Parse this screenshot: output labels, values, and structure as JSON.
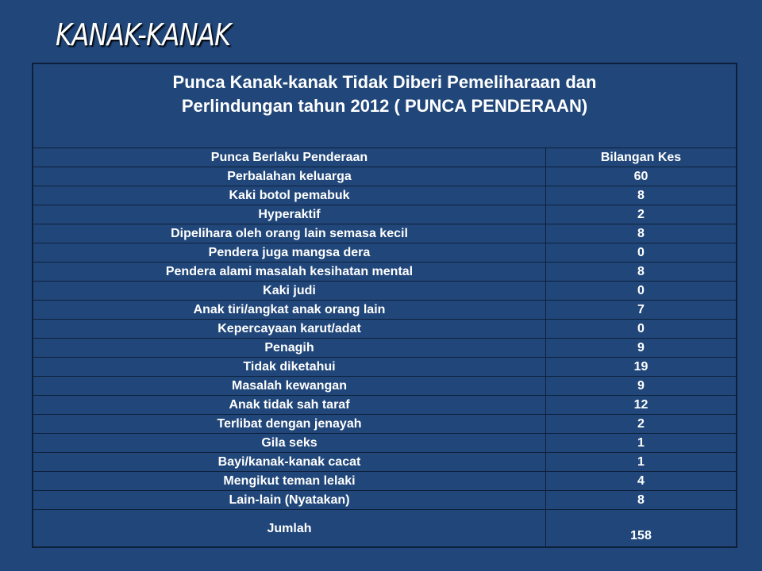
{
  "slide": {
    "title": "KANAK-KANAK"
  },
  "table": {
    "caption_line1": "Punca Kanak-kanak Tidak Diberi Pemeliharaan dan",
    "caption_line2": "Perlindungan tahun 2012 ( PUNCA PENDERAAN)",
    "headers": [
      "Punca Berlaku Penderaan",
      "Bilangan Kes"
    ],
    "rows": [
      [
        "Perbalahan keluarga",
        "60"
      ],
      [
        "Kaki botol pemabuk",
        "8"
      ],
      [
        "Hyperaktif",
        "2"
      ],
      [
        "Dipelihara oleh orang lain semasa kecil",
        "8"
      ],
      [
        "Pendera juga mangsa dera",
        "0"
      ],
      [
        "Pendera alami masalah kesihatan mental",
        "8"
      ],
      [
        "Kaki judi",
        "0"
      ],
      [
        "Anak tiri/angkat anak orang lain",
        "7"
      ],
      [
        "Kepercayaan karut/adat",
        "0"
      ],
      [
        "Penagih",
        "9"
      ],
      [
        "Tidak diketahui",
        "19"
      ],
      [
        "Masalah kewangan",
        "9"
      ],
      [
        "Anak tidak sah taraf",
        "12"
      ],
      [
        "Terlibat dengan jenayah",
        "2"
      ],
      [
        "Gila seks",
        "1"
      ],
      [
        "Bayi/kanak-kanak cacat",
        "1"
      ],
      [
        "Mengikut teman lelaki",
        "4"
      ],
      [
        "Lain-lain (Nyatakan)",
        "8"
      ]
    ],
    "total": [
      "Jumlah",
      "158"
    ]
  },
  "colors": {
    "background": "#21477a",
    "border": "#0d1f3a",
    "text": "#ffffff"
  }
}
